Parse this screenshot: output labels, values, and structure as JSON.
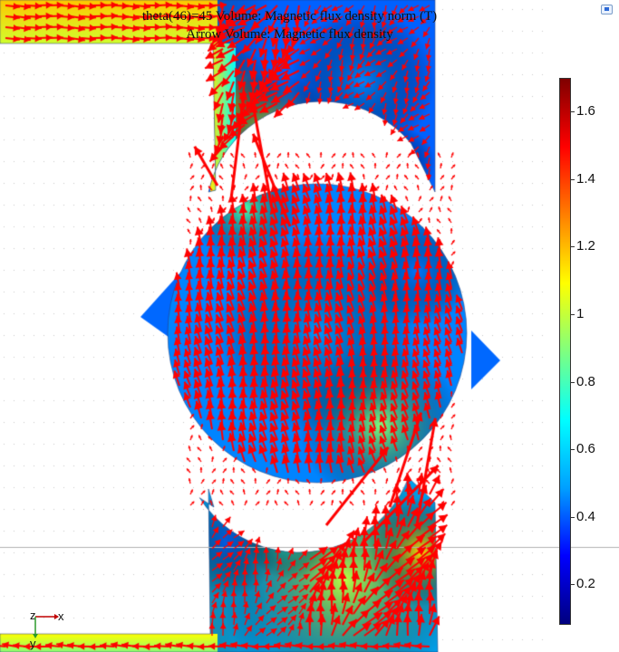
{
  "title_line1": "theta(46)=45  Volume: Magnetic flux density norm (T)",
  "title_line2": "Arrow Volume: Magnetic flux density",
  "colorbar": {
    "ticks": [
      "1.6",
      "1.4",
      "1.2",
      "1",
      "0.8",
      "0.6",
      "0.4",
      "0.2"
    ],
    "tick_values": [
      1.6,
      1.4,
      1.2,
      1.0,
      0.8,
      0.6,
      0.4,
      0.2
    ],
    "range": [
      0.08,
      1.7
    ],
    "colormap": "rainbow",
    "stops": [
      "#00007f",
      "#0000ff",
      "#00a0ff",
      "#00ffff",
      "#7fff7f",
      "#ffff00",
      "#ff7f00",
      "#ff0000",
      "#7f0000"
    ]
  },
  "axes_triad": {
    "x": "x",
    "y": "y",
    "z": "z"
  },
  "arrow_color": "#ff0000",
  "icons": {
    "corner": "view-options-icon"
  }
}
